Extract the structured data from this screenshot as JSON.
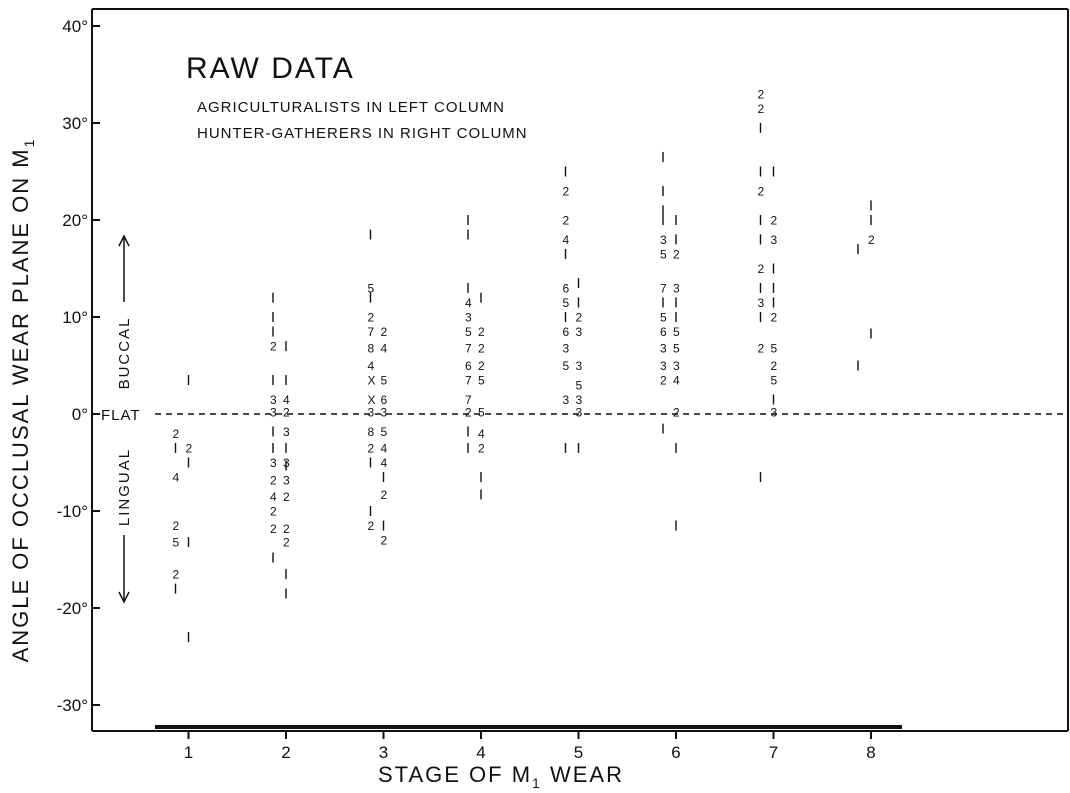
{
  "chart_data": {
    "type": "scatter",
    "title": "RAW DATA",
    "subtitle_lines": [
      "AGRICULTURALISTS IN LEFT COLUMN",
      "HUNTER-GATHERERS IN RIGHT COLUMN"
    ],
    "xlabel_main": "STAGE OF M",
    "xlabel_sub": "1",
    "xlabel_tail": " WEAR",
    "ylabel_main": "ANGLE OF OCCLUSAL WEAR PLANE ON M",
    "ylabel_sub": "1",
    "xlim": [
      0.25,
      9.75
    ],
    "ylim": [
      -32,
      42
    ],
    "x_ticks": [
      1,
      2,
      3,
      4,
      5,
      6,
      7,
      8
    ],
    "x_tick_labels": [
      "1",
      "2",
      "3",
      "4",
      "5",
      "6",
      "7",
      "8"
    ],
    "y_ticks": [
      -30,
      -20,
      -10,
      0,
      10,
      20,
      30,
      40
    ],
    "y_tick_labels": [
      "-30°",
      "-20°",
      "-10°",
      "0°",
      "10°",
      "20°",
      "30°",
      "40°"
    ],
    "reference_line": {
      "y": 0,
      "label": "FLAT"
    },
    "region_labels": {
      "upper": "BUCCAL",
      "lower": "LINGUAL"
    },
    "series": [
      {
        "name": "AGRICULTURALISTS",
        "column": "left",
        "points": [
          {
            "x": 1,
            "y": -2,
            "n": "2"
          },
          {
            "x": 1,
            "y": -3.5,
            "n": "1"
          },
          {
            "x": 1,
            "y": -6.5,
            "n": "4"
          },
          {
            "x": 1,
            "y": -11.5,
            "n": "2"
          },
          {
            "x": 1,
            "y": -13.2,
            "n": "5"
          },
          {
            "x": 1,
            "y": -16.5,
            "n": "2"
          },
          {
            "x": 1,
            "y": -18,
            "n": "1"
          },
          {
            "x": 2,
            "y": 12,
            "n": "1"
          },
          {
            "x": 2,
            "y": 10,
            "n": "1"
          },
          {
            "x": 2,
            "y": 8.5,
            "n": "1"
          },
          {
            "x": 2,
            "y": 7,
            "n": "2"
          },
          {
            "x": 2,
            "y": 3.5,
            "n": "1"
          },
          {
            "x": 2,
            "y": 1.5,
            "n": "3"
          },
          {
            "x": 2,
            "y": 0.2,
            "n": "3"
          },
          {
            "x": 2,
            "y": -1.8,
            "n": "1"
          },
          {
            "x": 2,
            "y": -3.5,
            "n": "1"
          },
          {
            "x": 2,
            "y": -5,
            "n": "3"
          },
          {
            "x": 2,
            "y": -6.8,
            "n": "2"
          },
          {
            "x": 2,
            "y": -8.5,
            "n": "4"
          },
          {
            "x": 2,
            "y": -10,
            "n": "2"
          },
          {
            "x": 2,
            "y": -11.8,
            "n": "2"
          },
          {
            "x": 2,
            "y": -14.8,
            "n": "1"
          },
          {
            "x": 3,
            "y": 18.5,
            "n": "1"
          },
          {
            "x": 3,
            "y": 13,
            "n": "5"
          },
          {
            "x": 3,
            "y": 12,
            "n": "1"
          },
          {
            "x": 3,
            "y": 10,
            "n": "2"
          },
          {
            "x": 3,
            "y": 8.5,
            "n": "7"
          },
          {
            "x": 3,
            "y": 6.8,
            "n": "8"
          },
          {
            "x": 3,
            "y": 5,
            "n": "4"
          },
          {
            "x": 3,
            "y": 3.5,
            "n": "X"
          },
          {
            "x": 3,
            "y": 1.5,
            "n": "X"
          },
          {
            "x": 3,
            "y": 0.2,
            "n": "3"
          },
          {
            "x": 3,
            "y": -1.8,
            "n": "8"
          },
          {
            "x": 3,
            "y": -3.5,
            "n": "2"
          },
          {
            "x": 3,
            "y": -5,
            "n": "1"
          },
          {
            "x": 3,
            "y": -10,
            "n": "1"
          },
          {
            "x": 3,
            "y": -11.5,
            "n": "2"
          },
          {
            "x": 4,
            "y": 20,
            "n": "1"
          },
          {
            "x": 4,
            "y": 18.5,
            "n": "1"
          },
          {
            "x": 4,
            "y": 13,
            "n": "1"
          },
          {
            "x": 4,
            "y": 11.5,
            "n": "4"
          },
          {
            "x": 4,
            "y": 10,
            "n": "3"
          },
          {
            "x": 4,
            "y": 8.5,
            "n": "5"
          },
          {
            "x": 4,
            "y": 6.8,
            "n": "7"
          },
          {
            "x": 4,
            "y": 5,
            "n": "6"
          },
          {
            "x": 4,
            "y": 3.5,
            "n": "7"
          },
          {
            "x": 4,
            "y": 1.5,
            "n": "7"
          },
          {
            "x": 4,
            "y": 0.2,
            "n": "2"
          },
          {
            "x": 4,
            "y": -1.8,
            "n": "1"
          },
          {
            "x": 4,
            "y": -3.5,
            "n": "1"
          },
          {
            "x": 5,
            "y": 25,
            "n": "1"
          },
          {
            "x": 5,
            "y": 23,
            "n": "2"
          },
          {
            "x": 5,
            "y": 20,
            "n": "2"
          },
          {
            "x": 5,
            "y": 18,
            "n": "4"
          },
          {
            "x": 5,
            "y": 16.5,
            "n": "1"
          },
          {
            "x": 5,
            "y": 13,
            "n": "6"
          },
          {
            "x": 5,
            "y": 11.5,
            "n": "5"
          },
          {
            "x": 5,
            "y": 10,
            "n": "1"
          },
          {
            "x": 5,
            "y": 8.5,
            "n": "6"
          },
          {
            "x": 5,
            "y": 6.8,
            "n": "3"
          },
          {
            "x": 5,
            "y": 5,
            "n": "5"
          },
          {
            "x": 5,
            "y": 1.5,
            "n": "3"
          },
          {
            "x": 5,
            "y": -3.5,
            "n": "1"
          },
          {
            "x": 6,
            "y": 26.5,
            "n": "1"
          },
          {
            "x": 6,
            "y": 23,
            "n": "1"
          },
          {
            "x": 6,
            "y": 21,
            "n": "1"
          },
          {
            "x": 6,
            "y": 20,
            "n": "1"
          },
          {
            "x": 6,
            "y": 18,
            "n": "3"
          },
          {
            "x": 6,
            "y": 16.5,
            "n": "5"
          },
          {
            "x": 6,
            "y": 13,
            "n": "7"
          },
          {
            "x": 6,
            "y": 11.5,
            "n": "1"
          },
          {
            "x": 6,
            "y": 10,
            "n": "5"
          },
          {
            "x": 6,
            "y": 8.5,
            "n": "6"
          },
          {
            "x": 6,
            "y": 6.8,
            "n": "3"
          },
          {
            "x": 6,
            "y": 5,
            "n": "3"
          },
          {
            "x": 6,
            "y": 3.5,
            "n": "2"
          },
          {
            "x": 6,
            "y": -1.5,
            "n": "1"
          },
          {
            "x": 7,
            "y": 33,
            "n": "2"
          },
          {
            "x": 7,
            "y": 31.5,
            "n": "2"
          },
          {
            "x": 7,
            "y": 29.5,
            "n": "1"
          },
          {
            "x": 7,
            "y": 25,
            "n": "1"
          },
          {
            "x": 7,
            "y": 23,
            "n": "2"
          },
          {
            "x": 7,
            "y": 20,
            "n": "1"
          },
          {
            "x": 7,
            "y": 18,
            "n": "1"
          },
          {
            "x": 7,
            "y": 15,
            "n": "2"
          },
          {
            "x": 7,
            "y": 13,
            "n": "1"
          },
          {
            "x": 7,
            "y": 11.5,
            "n": "3"
          },
          {
            "x": 7,
            "y": 10,
            "n": "1"
          },
          {
            "x": 7,
            "y": 6.8,
            "n": "2"
          },
          {
            "x": 7,
            "y": -6.5,
            "n": "1"
          },
          {
            "x": 8,
            "y": 17,
            "n": "1"
          },
          {
            "x": 8,
            "y": 5,
            "n": "1"
          }
        ]
      },
      {
        "name": "HUNTER-GATHERERS",
        "column": "right",
        "points": [
          {
            "x": 1,
            "y": 3.5,
            "n": "1"
          },
          {
            "x": 1,
            "y": -3.5,
            "n": "2"
          },
          {
            "x": 1,
            "y": -5,
            "n": "1"
          },
          {
            "x": 1,
            "y": -13.2,
            "n": "1"
          },
          {
            "x": 1,
            "y": -23,
            "n": "1"
          },
          {
            "x": 2,
            "y": 7,
            "n": "1"
          },
          {
            "x": 2,
            "y": 3.5,
            "n": "1"
          },
          {
            "x": 2,
            "y": 1.5,
            "n": "4"
          },
          {
            "x": 2,
            "y": 0.2,
            "n": "2"
          },
          {
            "x": 2,
            "y": -1.8,
            "n": "3"
          },
          {
            "x": 2,
            "y": -3.5,
            "n": "1"
          },
          {
            "x": 2,
            "y": -5,
            "n": "3"
          },
          {
            "x": 2,
            "y": -5.3,
            "n": "1"
          },
          {
            "x": 2,
            "y": -6.8,
            "n": "3"
          },
          {
            "x": 2,
            "y": -8.5,
            "n": "2"
          },
          {
            "x": 2,
            "y": -11.8,
            "n": "2"
          },
          {
            "x": 2,
            "y": -13.2,
            "n": "2"
          },
          {
            "x": 2,
            "y": -16.5,
            "n": "1"
          },
          {
            "x": 2,
            "y": -18.5,
            "n": "1"
          },
          {
            "x": 3,
            "y": 8.5,
            "n": "2"
          },
          {
            "x": 3,
            "y": 6.8,
            "n": "4"
          },
          {
            "x": 3,
            "y": 3.5,
            "n": "5"
          },
          {
            "x": 3,
            "y": 1.5,
            "n": "6"
          },
          {
            "x": 3,
            "y": 0.2,
            "n": "3"
          },
          {
            "x": 3,
            "y": -1.8,
            "n": "5"
          },
          {
            "x": 3,
            "y": -3.5,
            "n": "4"
          },
          {
            "x": 3,
            "y": -5,
            "n": "4"
          },
          {
            "x": 3,
            "y": -6.5,
            "n": "1"
          },
          {
            "x": 3,
            "y": -8.3,
            "n": "2"
          },
          {
            "x": 3,
            "y": -11.5,
            "n": "1"
          },
          {
            "x": 3,
            "y": -13,
            "n": "2"
          },
          {
            "x": 4,
            "y": 12,
            "n": "1"
          },
          {
            "x": 4,
            "y": 8.5,
            "n": "2"
          },
          {
            "x": 4,
            "y": 6.8,
            "n": "2"
          },
          {
            "x": 4,
            "y": 5,
            "n": "2"
          },
          {
            "x": 4,
            "y": 3.5,
            "n": "5"
          },
          {
            "x": 4,
            "y": 0.2,
            "n": "5"
          },
          {
            "x": 4,
            "y": -2,
            "n": "4"
          },
          {
            "x": 4,
            "y": -3.5,
            "n": "2"
          },
          {
            "x": 4,
            "y": -6.5,
            "n": "1"
          },
          {
            "x": 4,
            "y": -8.3,
            "n": "1"
          },
          {
            "x": 5,
            "y": 13.5,
            "n": "1"
          },
          {
            "x": 5,
            "y": 11.5,
            "n": "1"
          },
          {
            "x": 5,
            "y": 10,
            "n": "2"
          },
          {
            "x": 5,
            "y": 8.5,
            "n": "3"
          },
          {
            "x": 5,
            "y": 5,
            "n": "3"
          },
          {
            "x": 5,
            "y": 3,
            "n": "5"
          },
          {
            "x": 5,
            "y": 1.5,
            "n": "3"
          },
          {
            "x": 5,
            "y": 0.2,
            "n": "3"
          },
          {
            "x": 5,
            "y": -3.5,
            "n": "1"
          },
          {
            "x": 6,
            "y": 20,
            "n": "1"
          },
          {
            "x": 6,
            "y": 18,
            "n": "1"
          },
          {
            "x": 6,
            "y": 16.5,
            "n": "2"
          },
          {
            "x": 6,
            "y": 13,
            "n": "3"
          },
          {
            "x": 6,
            "y": 11.5,
            "n": "1"
          },
          {
            "x": 6,
            "y": 10,
            "n": "1"
          },
          {
            "x": 6,
            "y": 8.5,
            "n": "5"
          },
          {
            "x": 6,
            "y": 6.8,
            "n": "5"
          },
          {
            "x": 6,
            "y": 5,
            "n": "3"
          },
          {
            "x": 6,
            "y": 3.5,
            "n": "4"
          },
          {
            "x": 6,
            "y": 0.2,
            "n": "2"
          },
          {
            "x": 6,
            "y": -3.5,
            "n": "1"
          },
          {
            "x": 6,
            "y": -11.5,
            "n": "1"
          },
          {
            "x": 7,
            "y": 25,
            "n": "1"
          },
          {
            "x": 7,
            "y": 20,
            "n": "2"
          },
          {
            "x": 7,
            "y": 18,
            "n": "3"
          },
          {
            "x": 7,
            "y": 15,
            "n": "1"
          },
          {
            "x": 7,
            "y": 13,
            "n": "1"
          },
          {
            "x": 7,
            "y": 11.5,
            "n": "1"
          },
          {
            "x": 7,
            "y": 10,
            "n": "2"
          },
          {
            "x": 7,
            "y": 6.8,
            "n": "5"
          },
          {
            "x": 7,
            "y": 5,
            "n": "2"
          },
          {
            "x": 7,
            "y": 3.5,
            "n": "5"
          },
          {
            "x": 7,
            "y": 1.5,
            "n": "1"
          },
          {
            "x": 7,
            "y": 0.2,
            "n": "3"
          },
          {
            "x": 8,
            "y": 21.5,
            "n": "1"
          },
          {
            "x": 8,
            "y": 20,
            "n": "1"
          },
          {
            "x": 8,
            "y": 18,
            "n": "2"
          },
          {
            "x": 8,
            "y": 8.3,
            "n": "1"
          }
        ]
      }
    ]
  }
}
